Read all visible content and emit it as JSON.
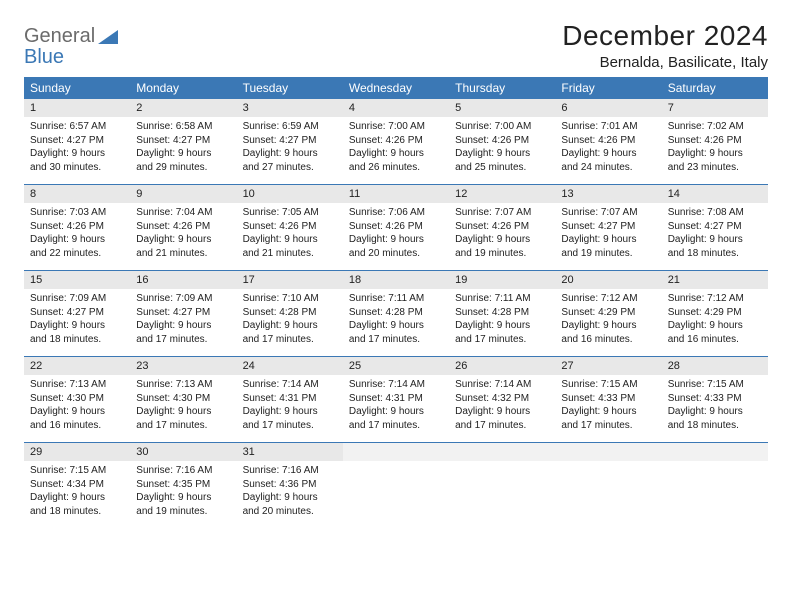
{
  "logo": {
    "part1": "General",
    "part2": "Blue"
  },
  "title": "December 2024",
  "location": "Bernalda, Basilicate, Italy",
  "colors": {
    "header_bg": "#3b78b5",
    "header_text": "#ffffff",
    "daynum_bg": "#e8e8e8",
    "divider": "#3b78b5",
    "logo_grey": "#6b6b6b",
    "logo_blue": "#3b78b5"
  },
  "days_of_week": [
    "Sunday",
    "Monday",
    "Tuesday",
    "Wednesday",
    "Thursday",
    "Friday",
    "Saturday"
  ],
  "weeks": [
    [
      {
        "n": "1",
        "sunrise": "6:57 AM",
        "sunset": "4:27 PM",
        "dh": "9",
        "dm": "30"
      },
      {
        "n": "2",
        "sunrise": "6:58 AM",
        "sunset": "4:27 PM",
        "dh": "9",
        "dm": "29"
      },
      {
        "n": "3",
        "sunrise": "6:59 AM",
        "sunset": "4:27 PM",
        "dh": "9",
        "dm": "27"
      },
      {
        "n": "4",
        "sunrise": "7:00 AM",
        "sunset": "4:26 PM",
        "dh": "9",
        "dm": "26"
      },
      {
        "n": "5",
        "sunrise": "7:00 AM",
        "sunset": "4:26 PM",
        "dh": "9",
        "dm": "25"
      },
      {
        "n": "6",
        "sunrise": "7:01 AM",
        "sunset": "4:26 PM",
        "dh": "9",
        "dm": "24"
      },
      {
        "n": "7",
        "sunrise": "7:02 AM",
        "sunset": "4:26 PM",
        "dh": "9",
        "dm": "23"
      }
    ],
    [
      {
        "n": "8",
        "sunrise": "7:03 AM",
        "sunset": "4:26 PM",
        "dh": "9",
        "dm": "22"
      },
      {
        "n": "9",
        "sunrise": "7:04 AM",
        "sunset": "4:26 PM",
        "dh": "9",
        "dm": "21"
      },
      {
        "n": "10",
        "sunrise": "7:05 AM",
        "sunset": "4:26 PM",
        "dh": "9",
        "dm": "21"
      },
      {
        "n": "11",
        "sunrise": "7:06 AM",
        "sunset": "4:26 PM",
        "dh": "9",
        "dm": "20"
      },
      {
        "n": "12",
        "sunrise": "7:07 AM",
        "sunset": "4:26 PM",
        "dh": "9",
        "dm": "19"
      },
      {
        "n": "13",
        "sunrise": "7:07 AM",
        "sunset": "4:27 PM",
        "dh": "9",
        "dm": "19"
      },
      {
        "n": "14",
        "sunrise": "7:08 AM",
        "sunset": "4:27 PM",
        "dh": "9",
        "dm": "18"
      }
    ],
    [
      {
        "n": "15",
        "sunrise": "7:09 AM",
        "sunset": "4:27 PM",
        "dh": "9",
        "dm": "18"
      },
      {
        "n": "16",
        "sunrise": "7:09 AM",
        "sunset": "4:27 PM",
        "dh": "9",
        "dm": "17"
      },
      {
        "n": "17",
        "sunrise": "7:10 AM",
        "sunset": "4:28 PM",
        "dh": "9",
        "dm": "17"
      },
      {
        "n": "18",
        "sunrise": "7:11 AM",
        "sunset": "4:28 PM",
        "dh": "9",
        "dm": "17"
      },
      {
        "n": "19",
        "sunrise": "7:11 AM",
        "sunset": "4:28 PM",
        "dh": "9",
        "dm": "17"
      },
      {
        "n": "20",
        "sunrise": "7:12 AM",
        "sunset": "4:29 PM",
        "dh": "9",
        "dm": "16"
      },
      {
        "n": "21",
        "sunrise": "7:12 AM",
        "sunset": "4:29 PM",
        "dh": "9",
        "dm": "16"
      }
    ],
    [
      {
        "n": "22",
        "sunrise": "7:13 AM",
        "sunset": "4:30 PM",
        "dh": "9",
        "dm": "16"
      },
      {
        "n": "23",
        "sunrise": "7:13 AM",
        "sunset": "4:30 PM",
        "dh": "9",
        "dm": "17"
      },
      {
        "n": "24",
        "sunrise": "7:14 AM",
        "sunset": "4:31 PM",
        "dh": "9",
        "dm": "17"
      },
      {
        "n": "25",
        "sunrise": "7:14 AM",
        "sunset": "4:31 PM",
        "dh": "9",
        "dm": "17"
      },
      {
        "n": "26",
        "sunrise": "7:14 AM",
        "sunset": "4:32 PM",
        "dh": "9",
        "dm": "17"
      },
      {
        "n": "27",
        "sunrise": "7:15 AM",
        "sunset": "4:33 PM",
        "dh": "9",
        "dm": "17"
      },
      {
        "n": "28",
        "sunrise": "7:15 AM",
        "sunset": "4:33 PM",
        "dh": "9",
        "dm": "18"
      }
    ],
    [
      {
        "n": "29",
        "sunrise": "7:15 AM",
        "sunset": "4:34 PM",
        "dh": "9",
        "dm": "18"
      },
      {
        "n": "30",
        "sunrise": "7:16 AM",
        "sunset": "4:35 PM",
        "dh": "9",
        "dm": "19"
      },
      {
        "n": "31",
        "sunrise": "7:16 AM",
        "sunset": "4:36 PM",
        "dh": "9",
        "dm": "20"
      },
      null,
      null,
      null,
      null
    ]
  ],
  "labels": {
    "sunrise": "Sunrise:",
    "sunset": "Sunset:",
    "daylight": "Daylight:",
    "hours": "hours",
    "and": "and",
    "minutes": "minutes."
  }
}
